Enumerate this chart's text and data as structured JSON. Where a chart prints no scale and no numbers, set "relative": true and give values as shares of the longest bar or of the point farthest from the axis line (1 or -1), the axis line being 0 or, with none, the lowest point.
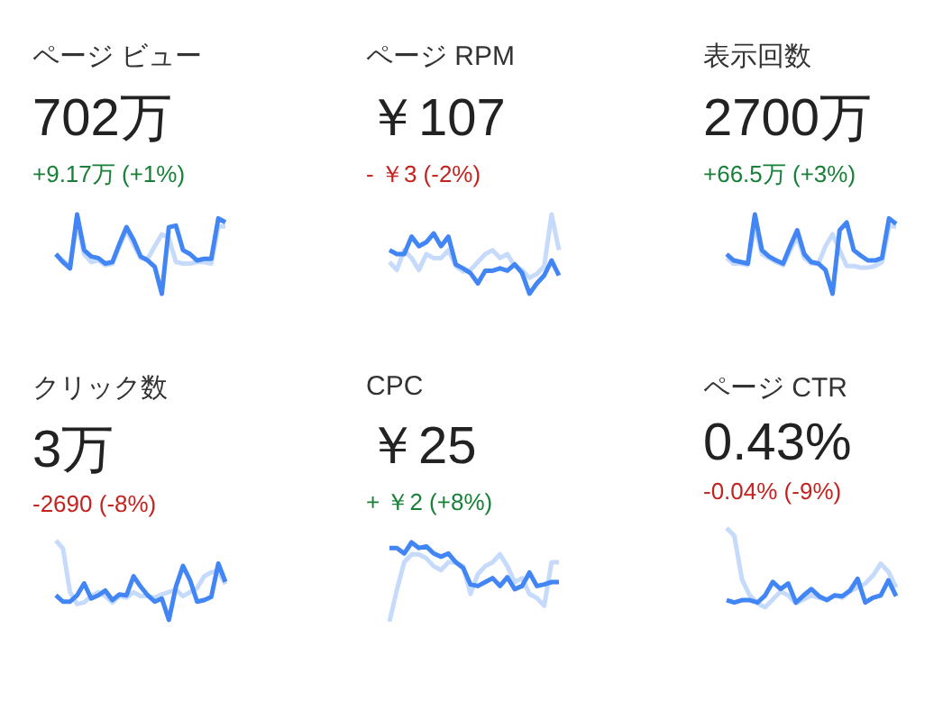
{
  "chart_data": [
    {
      "type": "line",
      "title": "ページ ビュー",
      "subtitle": "702万",
      "annotations": [
        "+9.17万 (+1%)"
      ],
      "relative": true,
      "categories": [
        null,
        null,
        null,
        null,
        null,
        null,
        null,
        null,
        null,
        null,
        null,
        null,
        null,
        null,
        null,
        null,
        null,
        null,
        null,
        null,
        null,
        null,
        null,
        null,
        null
      ],
      "series": [
        {
          "color": "#4285f4",
          "values": [
            0.5,
            0.4,
            0.32,
            1,
            0.55,
            0.47,
            0.45,
            0.38,
            0.4,
            0.63,
            0.84,
            0.68,
            0.47,
            0.42,
            0.34,
            0,
            0.84,
            0.86,
            0.55,
            0.5,
            0.42,
            0.44,
            0.44,
            0.95,
            0.9
          ]
        },
        {
          "color": "#c6dafc",
          "values": [
            0.5,
            0.42,
            0.35,
            0.9,
            0.5,
            0.4,
            0.42,
            0.36,
            0.38,
            0.6,
            0.8,
            0.62,
            0.45,
            0.44,
            0.6,
            0.75,
            0.7,
            0.4,
            0.38,
            0.38,
            0.4,
            0.4,
            0.38,
            0.85,
            0.85
          ]
        }
      ]
    },
    {
      "type": "line",
      "title": "ページ RPM",
      "subtitle": "￥107",
      "annotations": [
        "- ￥3 (-2%)"
      ],
      "relative": true,
      "categories": [
        null,
        null,
        null,
        null,
        null,
        null,
        null,
        null,
        null,
        null,
        null,
        null,
        null,
        null,
        null,
        null,
        null,
        null,
        null,
        null,
        null,
        null,
        null,
        null
      ],
      "series": [
        {
          "color": "#4285f4",
          "values": [
            0.55,
            0.5,
            0.5,
            0.72,
            0.6,
            0.65,
            0.76,
            0.6,
            0.72,
            0.37,
            0.32,
            0.26,
            0.13,
            0.29,
            0.29,
            0.32,
            0.29,
            0.37,
            0.26,
            0,
            0.13,
            0.23,
            0.42,
            0.23
          ]
        },
        {
          "color": "#c6dafc",
          "values": [
            0.4,
            0.3,
            0.55,
            0.45,
            0.3,
            0.5,
            0.45,
            0.45,
            0.55,
            0.35,
            0.28,
            0.3,
            0.4,
            0.5,
            0.55,
            0.45,
            0.5,
            0.35,
            0.3,
            0.2,
            0.25,
            0.35,
            1,
            0.55
          ]
        }
      ]
    },
    {
      "type": "line",
      "title": "表示回数",
      "subtitle": "2700万",
      "annotations": [
        "+66.5万 (+3%)"
      ],
      "relative": true,
      "categories": [
        null,
        null,
        null,
        null,
        null,
        null,
        null,
        null,
        null,
        null,
        null,
        null,
        null,
        null,
        null,
        null,
        null,
        null,
        null,
        null,
        null,
        null,
        null,
        null,
        null
      ],
      "series": [
        {
          "color": "#4285f4",
          "values": [
            0.5,
            0.42,
            0.4,
            0.38,
            1,
            0.55,
            0.47,
            0.42,
            0.38,
            0.6,
            0.8,
            0.5,
            0.4,
            0.38,
            0.3,
            0,
            0.8,
            0.9,
            0.55,
            0.48,
            0.42,
            0.42,
            0.45,
            0.95,
            0.88
          ]
        },
        {
          "color": "#c6dafc",
          "values": [
            0.45,
            0.38,
            0.38,
            0.36,
            0.85,
            0.5,
            0.45,
            0.4,
            0.36,
            0.55,
            0.72,
            0.45,
            0.38,
            0.38,
            0.6,
            0.75,
            0.55,
            0.35,
            0.35,
            0.33,
            0.33,
            0.35,
            0.4,
            0.85,
            0.85
          ]
        }
      ]
    },
    {
      "type": "line",
      "title": "クリック数",
      "subtitle": "3万",
      "annotations": [
        "-2690 (-8%)"
      ],
      "relative": true,
      "categories": [
        null,
        null,
        null,
        null,
        null,
        null,
        null,
        null,
        null,
        null,
        null,
        null,
        null,
        null,
        null,
        null,
        null,
        null,
        null,
        null,
        null,
        null,
        null,
        null,
        null
      ],
      "series": [
        {
          "color": "#4285f4",
          "values": [
            0.31,
            0.23,
            0.23,
            0.31,
            0.46,
            0.27,
            0.31,
            0.37,
            0.25,
            0.32,
            0.31,
            0.55,
            0.42,
            0.31,
            0.23,
            0.27,
            0,
            0.42,
            0.68,
            0.5,
            0.23,
            0.25,
            0.29,
            0.71,
            0.48
          ]
        },
        {
          "color": "#c6dafc",
          "values": [
            1,
            0.9,
            0.35,
            0.2,
            0.22,
            0.3,
            0.35,
            0.3,
            0.22,
            0.3,
            0.28,
            0.35,
            0.3,
            0.3,
            0.28,
            0.32,
            0.35,
            0.38,
            0.3,
            0.35,
            0.4,
            0.55,
            0.6,
            0.62,
            0.45
          ]
        }
      ]
    },
    {
      "type": "line",
      "title": "CPC",
      "subtitle": "￥25",
      "annotations": [
        "+ ￥2 (+8%)"
      ],
      "relative": true,
      "categories": [
        null,
        null,
        null,
        null,
        null,
        null,
        null,
        null,
        null,
        null,
        null,
        null,
        null,
        null,
        null,
        null,
        null,
        null,
        null,
        null,
        null,
        null,
        null,
        null
      ],
      "series": [
        {
          "color": "#4285f4",
          "values": [
            0.93,
            0.93,
            0.86,
            1,
            0.93,
            0.95,
            0.86,
            0.82,
            0.86,
            0.75,
            0.68,
            0.47,
            0.45,
            0.5,
            0.55,
            0.45,
            0.56,
            0.41,
            0.45,
            0.62,
            0.45,
            0.47,
            0.5,
            0.5
          ]
        },
        {
          "color": "#c6dafc",
          "values": [
            0,
            0.4,
            0.75,
            0.85,
            0.85,
            0.8,
            0.7,
            0.65,
            0.75,
            0.75,
            0.7,
            0.35,
            0.6,
            0.7,
            0.75,
            0.85,
            0.7,
            0.5,
            0.55,
            0.35,
            0.3,
            0.2,
            0.75,
            0.75
          ]
        }
      ]
    },
    {
      "type": "line",
      "title": "ページ CTR",
      "subtitle": "0.43%",
      "annotations": [
        "-0.04% (-9%)"
      ],
      "relative": true,
      "categories": [
        null,
        null,
        null,
        null,
        null,
        null,
        null,
        null,
        null,
        null,
        null,
        null,
        null,
        null,
        null,
        null,
        null,
        null,
        null,
        null,
        null,
        null,
        null
      ],
      "series": [
        {
          "color": "#4285f4",
          "values": [
            0.09,
            0.06,
            0.09,
            0.09,
            0.06,
            0.15,
            0.32,
            0.23,
            0.3,
            0.06,
            0.15,
            0.23,
            0.14,
            0.09,
            0.15,
            0.14,
            0.21,
            0.36,
            0.06,
            0.12,
            0.15,
            0.34,
            0.14
          ]
        },
        {
          "color": "#c6dafc",
          "values": [
            1,
            0.9,
            0.35,
            0.15,
            0.05,
            0,
            0.1,
            0.2,
            0.15,
            0.05,
            0.1,
            0.15,
            0.12,
            0.1,
            0.15,
            0.12,
            0.2,
            0.25,
            0.3,
            0.4,
            0.55,
            0.45,
            0.25
          ]
        }
      ]
    }
  ]
}
